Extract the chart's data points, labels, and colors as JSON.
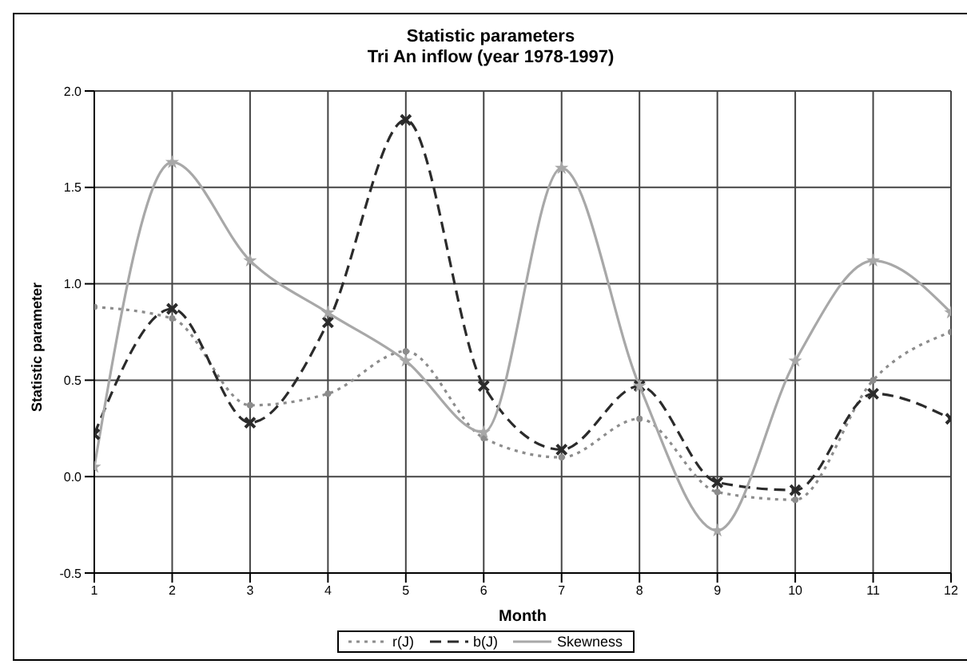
{
  "chart_data": {
    "type": "line",
    "title": "Statistic parameters",
    "subtitle": "Tri An inflow (year 1978-1997)",
    "xlabel": "Month",
    "ylabel": "Statistic parameter",
    "x": [
      1,
      2,
      3,
      4,
      5,
      6,
      7,
      8,
      9,
      10,
      11,
      12
    ],
    "series": [
      {
        "name": "r(J)",
        "color": "#8c8c8c",
        "line_style": "dotted",
        "marker": "circle",
        "values": [
          0.88,
          0.82,
          0.37,
          0.43,
          0.65,
          0.2,
          0.1,
          0.3,
          -0.08,
          -0.12,
          0.5,
          0.75
        ]
      },
      {
        "name": "b(J)",
        "color": "#2b2b2b",
        "line_style": "dashed",
        "marker": "cross",
        "values": [
          0.22,
          0.87,
          0.28,
          0.8,
          1.85,
          0.47,
          0.14,
          0.47,
          -0.03,
          -0.07,
          0.43,
          0.3
        ]
      },
      {
        "name": "Skewness",
        "color": "#a8a8a8",
        "line_style": "solid",
        "marker": "star",
        "values": [
          0.05,
          1.63,
          1.12,
          0.85,
          0.6,
          0.23,
          1.6,
          0.47,
          -0.28,
          0.6,
          1.12,
          0.85
        ]
      }
    ],
    "xlim": [
      1,
      12
    ],
    "xticks": [
      1,
      2,
      3,
      4,
      5,
      6,
      7,
      8,
      9,
      10,
      11,
      12
    ],
    "ylim": [
      -0.5,
      2
    ],
    "yticks": [
      {
        "value": -0.5,
        "label": "-0.5"
      },
      {
        "value": 0,
        "label": "0.0"
      },
      {
        "value": 0.5,
        "label": "0.5"
      },
      {
        "value": 1,
        "label": "1.0"
      },
      {
        "value": 1.5,
        "label": "1.5"
      },
      {
        "value": 2,
        "label": "2.0"
      }
    ],
    "grid": true,
    "legend": "bottom"
  }
}
